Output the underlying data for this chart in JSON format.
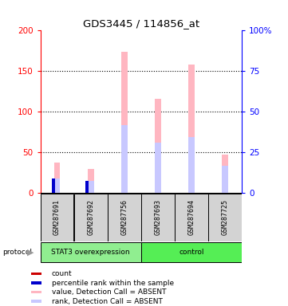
{
  "title": "GDS3445 / 114856_at",
  "samples": [
    "GSM287691",
    "GSM287692",
    "GSM287756",
    "GSM287693",
    "GSM287694",
    "GSM287725"
  ],
  "value_absent": [
    37,
    29,
    174,
    116,
    158,
    47
  ],
  "rank_absent": [
    18,
    15,
    83,
    62,
    69,
    33
  ],
  "count_present": [
    5,
    3,
    0,
    0,
    0,
    0
  ],
  "rank_present": [
    18,
    15,
    0,
    0,
    0,
    0
  ],
  "left_ylim": [
    0,
    200
  ],
  "right_ylim": [
    0,
    100
  ],
  "left_yticks": [
    0,
    50,
    100,
    150,
    200
  ],
  "right_yticks": [
    0,
    25,
    50,
    75,
    100
  ],
  "right_yticklabels": [
    "0",
    "25",
    "50",
    "75",
    "100%"
  ],
  "color_value_absent": "#ffb6c1",
  "color_rank_absent": "#c8c8ff",
  "color_count": "#cc0000",
  "color_rank_present": "#0000cc",
  "sample_box_color": "#d3d3d3",
  "group1_label": "STAT3 overexpression",
  "group2_label": "control",
  "group1_color": "#90ee90",
  "group2_color": "#55ee55",
  "legend_items": [
    {
      "label": "count",
      "color": "#cc0000"
    },
    {
      "label": "percentile rank within the sample",
      "color": "#0000cc"
    },
    {
      "label": "value, Detection Call = ABSENT",
      "color": "#ffb6c1"
    },
    {
      "label": "rank, Detection Call = ABSENT",
      "color": "#c8c8ff"
    }
  ]
}
